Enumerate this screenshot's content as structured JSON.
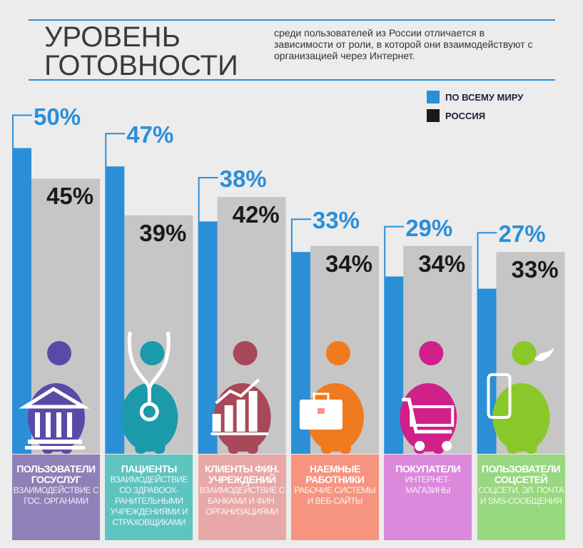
{
  "header": {
    "title_lines": [
      "УРОВЕНЬ",
      "ГОТОВНОСТИ"
    ],
    "subtitle": "среди пользователей из России отличается в зависимости от роли, в которой они взаимодействуют с организацией через Интернет."
  },
  "legend": [
    {
      "label": "ПО ВСЕМУ МИРУ",
      "color": "#2b8fd8"
    },
    {
      "label": "РОССИЯ",
      "color": "#1a1a1a"
    }
  ],
  "chart_data": {
    "type": "bar",
    "categories": [
      "ПОЛЬЗОВАТЕЛИ ГОСУСЛУГ",
      "ПАЦИЕНТЫ",
      "КЛИЕНТЫ ФИН. УЧРЕЖДЕНИЙ",
      "НАЕМНЫЕ РАБОТНИКИ",
      "ПОКУПАТЕЛИ",
      "ПОЛЬЗОВАТЕЛИ СОЦСЕТЕЙ"
    ],
    "series": [
      {
        "name": "ПО ВСЕМУ МИРУ",
        "values": [
          50,
          47,
          38,
          33,
          29,
          27
        ]
      },
      {
        "name": "РОССИЯ",
        "values": [
          45,
          39,
          42,
          34,
          34,
          33
        ]
      }
    ],
    "value_labels": {
      "world": [
        "50%",
        "47%",
        "38%",
        "33%",
        "29%",
        "27%"
      ],
      "russia": [
        "45%",
        "39%",
        "42%",
        "34%",
        "34%",
        "33%"
      ]
    },
    "ylim": [
      0,
      50
    ]
  },
  "panels": [
    {
      "title": "ПОЛЬЗОВАТЕЛИ ГОСУСЛУГ",
      "desc": "ВЗАИМОДЕЙСТВИЕ С ГОС. ОРГАНАМИ",
      "color": "#9080b8",
      "figure": "#5a4aa8",
      "icon": "government-building-icon"
    },
    {
      "title": "ПАЦИЕНТЫ",
      "desc": "ВЗАИМОДЕЙСТВИЕ СО ЗДРАВООХ-РАНИТЕЛЬНЫМИ УЧРЕЖДЕНИЯМИ И СТРАХОВЩИКАМИ",
      "color": "#5ec4c0",
      "figure": "#1a9aaa",
      "icon": "stethoscope-icon"
    },
    {
      "title": "КЛИЕНТЫ ФИН. УЧРЕЖДЕНИЙ",
      "desc": "ВЗАИМОДЕЙСТВИЕ С БАНКАМИ И ФИН. ОРГАНИЗАЦИЯМИ",
      "color": "#e8a8a8",
      "figure": "#a84858",
      "icon": "growth-chart-icon"
    },
    {
      "title": "НАЕМНЫЕ РАБОТНИКИ",
      "desc": "РАБОЧИЕ СИСТЕМЫ И ВЕБ-САЙТЫ",
      "color": "#f79480",
      "figure": "#f07a20",
      "icon": "briefcase-icon"
    },
    {
      "title": "ПОКУПАТЕЛИ",
      "desc": "ИНТЕРНЕТ-МАГАЗИНЫ",
      "color": "#dc88dc",
      "figure": "#d0208a",
      "icon": "shopping-cart-icon"
    },
    {
      "title": "ПОЛЬЗОВАТЕЛИ СОЦСЕТЕЙ",
      "desc": "СОЦСЕТИ, ЭЛ. ПОЧТА И SMS-СООБЩЕНИЯ",
      "color": "#98d880",
      "figure": "#8ac82a",
      "icon": "smartphone-icon"
    }
  ]
}
